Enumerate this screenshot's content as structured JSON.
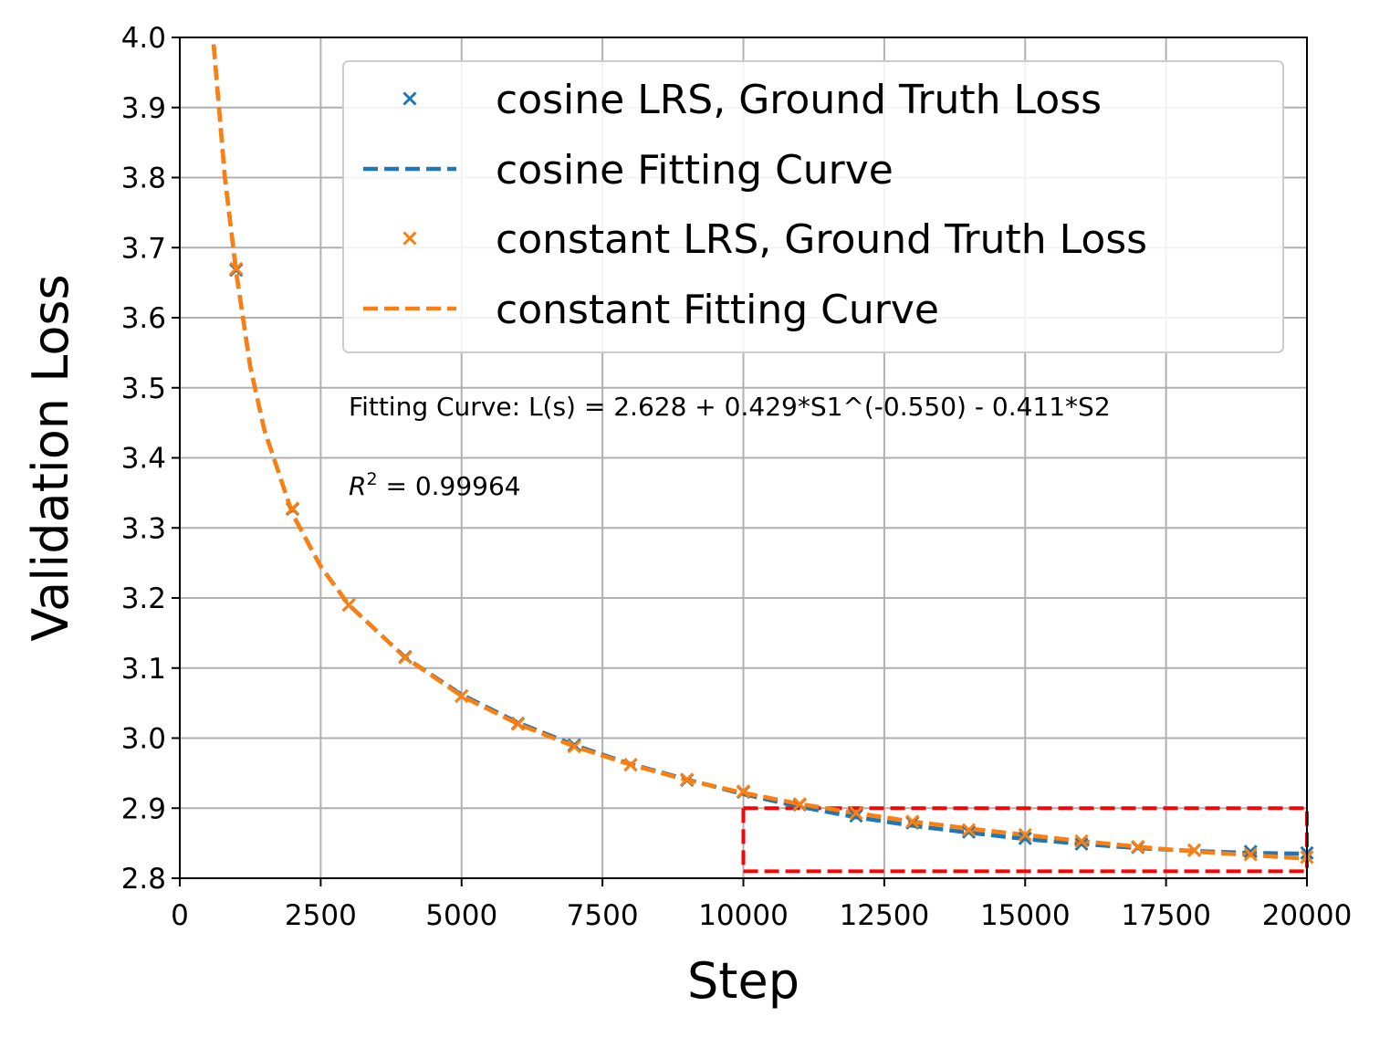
{
  "chart_data": {
    "type": "line",
    "title": "",
    "xlabel": "Step",
    "ylabel": "Validation Loss",
    "xlim": [
      0,
      20000
    ],
    "ylim": [
      2.8,
      4.0
    ],
    "grid": true,
    "x_ticks": [
      "0",
      "2500",
      "5000",
      "7500",
      "10000",
      "12500",
      "15000",
      "17500",
      "20000"
    ],
    "y_ticks": [
      "2.8",
      "2.9",
      "3.0",
      "3.1",
      "3.2",
      "3.3",
      "3.4",
      "3.5",
      "3.6",
      "3.7",
      "3.8",
      "3.9",
      "4.0"
    ],
    "legend_position": "top-right",
    "legend": [
      "cosine LRS, Ground Truth Loss",
      "cosine Fitting Curve",
      "constant LRS, Ground Truth Loss",
      "constant Fitting Curve"
    ],
    "series": [
      {
        "name": "cosine LRS, Ground Truth Loss",
        "kind": "scatter",
        "marker": "x",
        "color": "#1f77b4",
        "x": [
          1000,
          2000,
          3000,
          4000,
          5000,
          6000,
          7000,
          8000,
          9000,
          10000,
          11000,
          12000,
          13000,
          14000,
          15000,
          16000,
          17000,
          18000,
          19000,
          20000
        ],
        "y": [
          3.668,
          3.327,
          3.19,
          3.116,
          3.06,
          3.021,
          2.99,
          2.962,
          2.94,
          2.923,
          2.905,
          2.889,
          2.879,
          2.866,
          2.857,
          2.849,
          2.844,
          2.84,
          2.838,
          2.836
        ]
      },
      {
        "name": "cosine Fitting Curve",
        "kind": "line",
        "dash": "dashed",
        "color": "#1f77b4",
        "x": [
          600,
          800,
          1000,
          1250,
          1500,
          2000,
          2500,
          3000,
          4000,
          5000,
          6000,
          7000,
          8000,
          9000,
          10000,
          11000,
          12000,
          13000,
          14000,
          15000,
          16000,
          17000,
          18000,
          19000,
          20000
        ],
        "y": [
          3.99,
          3.8,
          3.665,
          3.53,
          3.44,
          3.32,
          3.245,
          3.19,
          3.115,
          3.062,
          3.022,
          2.99,
          2.963,
          2.941,
          2.92,
          2.902,
          2.887,
          2.875,
          2.865,
          2.856,
          2.849,
          2.843,
          2.839,
          2.836,
          2.835
        ]
      },
      {
        "name": "constant LRS, Ground Truth Loss",
        "kind": "scatter",
        "marker": "x",
        "color": "#ff7f0e",
        "x": [
          1000,
          2000,
          3000,
          4000,
          5000,
          6000,
          7000,
          8000,
          9000,
          10000,
          11000,
          12000,
          13000,
          14000,
          15000,
          16000,
          17000,
          18000,
          19000,
          20000
        ],
        "y": [
          3.67,
          3.328,
          3.19,
          3.115,
          3.06,
          3.02,
          2.988,
          2.962,
          2.941,
          2.924,
          2.906,
          2.893,
          2.881,
          2.869,
          2.862,
          2.853,
          2.845,
          2.84,
          2.834,
          2.83
        ]
      },
      {
        "name": "constant Fitting Curve",
        "kind": "line",
        "dash": "dashed",
        "color": "#ff7f0e",
        "x": [
          600,
          800,
          1000,
          1250,
          1500,
          2000,
          2500,
          3000,
          4000,
          5000,
          6000,
          7000,
          8000,
          9000,
          10000,
          11000,
          12000,
          13000,
          14000,
          15000,
          16000,
          17000,
          18000,
          19000,
          20000
        ],
        "y": [
          3.99,
          3.8,
          3.665,
          3.53,
          3.44,
          3.32,
          3.245,
          3.19,
          3.115,
          3.06,
          3.02,
          2.988,
          2.962,
          2.94,
          2.922,
          2.906,
          2.893,
          2.881,
          2.871,
          2.862,
          2.853,
          2.845,
          2.838,
          2.833,
          2.828
        ]
      }
    ],
    "annotations": {
      "fit_formula": "Fitting Curve: L(s) = 2.628 + 0.429*S1^(-0.550) - 0.411*S2",
      "r2_label": "R",
      "r2_exponent": "2",
      "r2_value": " = 0.99964"
    },
    "highlight_box": {
      "x_range": [
        10000,
        20000
      ],
      "y_range": [
        2.81,
        2.9
      ],
      "color": "#ff0000",
      "style": "dashed"
    },
    "colors": {
      "cosine": "#1f77b4",
      "constant": "#ff7f0e",
      "grid": "#b0b0b0",
      "highlight": "#ff0000"
    }
  }
}
